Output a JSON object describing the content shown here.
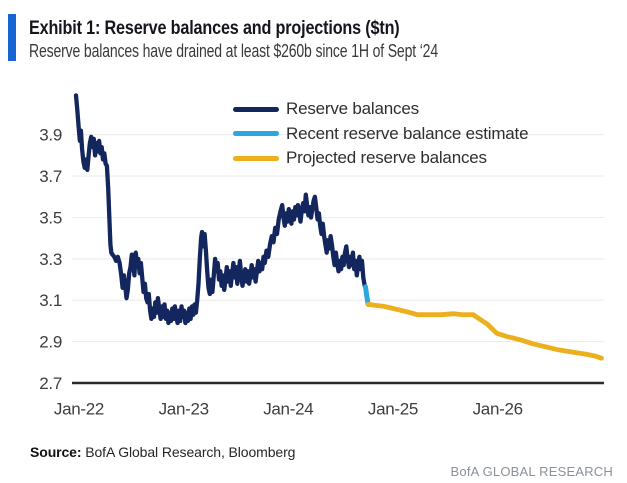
{
  "header": {
    "accent_color": "#1765d2",
    "exhibit_title": "Exhibit 1: Reserve balances and projections ($tn)",
    "subtitle": "Reserve balances have drained at least $260b since 1H of Sept ‘24"
  },
  "legend": [
    {
      "label": "Reserve balances",
      "color": "#13265e"
    },
    {
      "label": "Recent reserve balance estimate",
      "color": "#2aa7df"
    },
    {
      "label": "Projected reserve balances",
      "color": "#ecb01f"
    }
  ],
  "footer": {
    "source_label": "Source:",
    "source_text": " BofA Global Research, Bloomberg",
    "brand": "BofA GLOBAL RESEARCH"
  },
  "chart_data": {
    "type": "line",
    "title": "Reserve balances and projections ($tn)",
    "xlabel": "",
    "ylabel": "",
    "x_unit": "months since Jan-2022",
    "xlim": [
      -0.6,
      60.6
    ],
    "ylim": [
      2.7,
      4.15
    ],
    "grid": "horizontal",
    "grid_color": "#ececec",
    "axis_color": "#2c2b29",
    "tick_color": "#3e3e3d",
    "y_ticks": [
      3.9,
      3.7,
      3.5,
      3.3,
      3.1,
      2.9,
      2.7
    ],
    "x_ticks": [
      {
        "label": "Jan-22",
        "m": 0
      },
      {
        "label": "Jan-23",
        "m": 12
      },
      {
        "label": "Jan-24",
        "m": 24
      },
      {
        "label": "Jan-25",
        "m": 36
      },
      {
        "label": "Jan-26",
        "m": 48
      }
    ],
    "legend_position": "top-center",
    "series": [
      {
        "name": "Reserve balances",
        "color": "#13265e",
        "width": 4.3,
        "points": [
          [
            -0.34,
            4.09
          ],
          [
            -0.2,
            4.02
          ],
          [
            -0.05,
            3.94
          ],
          [
            0.1,
            3.87
          ],
          [
            0.22,
            3.92
          ],
          [
            0.35,
            3.83
          ],
          [
            0.5,
            3.77
          ],
          [
            0.65,
            3.74
          ],
          [
            0.8,
            3.78
          ],
          [
            0.95,
            3.73
          ],
          [
            1.1,
            3.8
          ],
          [
            1.25,
            3.86
          ],
          [
            1.4,
            3.89
          ],
          [
            1.55,
            3.84
          ],
          [
            1.7,
            3.88
          ],
          [
            1.85,
            3.8
          ],
          [
            2.0,
            3.86
          ],
          [
            2.15,
            3.82
          ],
          [
            2.3,
            3.87
          ],
          [
            2.45,
            3.81
          ],
          [
            2.6,
            3.84
          ],
          [
            2.75,
            3.78
          ],
          [
            2.9,
            3.81
          ],
          [
            3.05,
            3.76
          ],
          [
            3.2,
            3.75
          ],
          [
            3.35,
            3.64
          ],
          [
            3.5,
            3.48
          ],
          [
            3.6,
            3.37
          ],
          [
            3.7,
            3.33
          ],
          [
            3.85,
            3.32
          ],
          [
            4.05,
            3.31
          ],
          [
            4.25,
            3.29
          ],
          [
            4.45,
            3.31
          ],
          [
            4.65,
            3.28
          ],
          [
            4.85,
            3.22
          ],
          [
            5.0,
            3.16
          ],
          [
            5.15,
            3.22
          ],
          [
            5.3,
            3.17
          ],
          [
            5.45,
            3.11
          ],
          [
            5.6,
            3.15
          ],
          [
            5.75,
            3.23
          ],
          [
            5.9,
            3.26
          ],
          [
            6.05,
            3.32
          ],
          [
            6.2,
            3.29
          ],
          [
            6.35,
            3.22
          ],
          [
            6.5,
            3.33
          ],
          [
            6.65,
            3.28
          ],
          [
            6.8,
            3.3
          ],
          [
            6.95,
            3.23
          ],
          [
            7.1,
            3.28
          ],
          [
            7.25,
            3.21
          ],
          [
            7.4,
            3.14
          ],
          [
            7.55,
            3.18
          ],
          [
            7.7,
            3.11
          ],
          [
            7.85,
            3.09
          ],
          [
            8.0,
            3.13
          ],
          [
            8.15,
            3.05
          ],
          [
            8.3,
            3.01
          ],
          [
            8.45,
            3.06
          ],
          [
            8.6,
            3.02
          ],
          [
            8.75,
            3.09
          ],
          [
            8.9,
            3.04
          ],
          [
            9.05,
            3.11
          ],
          [
            9.2,
            3.06
          ],
          [
            9.35,
            3.01
          ],
          [
            9.5,
            3.07
          ],
          [
            9.65,
            3.02
          ],
          [
            9.8,
            3.08
          ],
          [
            9.95,
            3.01
          ],
          [
            10.1,
            3.05
          ],
          [
            10.25,
            2.99
          ],
          [
            10.4,
            3.04
          ],
          [
            10.55,
            3.0
          ],
          [
            10.7,
            3.06
          ],
          [
            10.85,
            3.01
          ],
          [
            11.0,
            3.07
          ],
          [
            11.15,
            3.02
          ],
          [
            11.3,
            2.99
          ],
          [
            11.45,
            3.05
          ],
          [
            11.6,
            3.0
          ],
          [
            11.75,
            3.07
          ],
          [
            11.9,
            3.02
          ],
          [
            12.05,
            3.05
          ],
          [
            12.2,
            2.99
          ],
          [
            12.35,
            3.04
          ],
          [
            12.5,
            3.0
          ],
          [
            12.65,
            3.06
          ],
          [
            12.8,
            3.01
          ],
          [
            12.95,
            3.07
          ],
          [
            13.1,
            3.03
          ],
          [
            13.25,
            3.08
          ],
          [
            13.4,
            3.04
          ],
          [
            13.55,
            3.1
          ],
          [
            13.7,
            3.18
          ],
          [
            13.85,
            3.3
          ],
          [
            14.0,
            3.4
          ],
          [
            14.1,
            3.43
          ],
          [
            14.25,
            3.36
          ],
          [
            14.4,
            3.42
          ],
          [
            14.55,
            3.34
          ],
          [
            14.7,
            3.24
          ],
          [
            14.85,
            3.16
          ],
          [
            15.0,
            3.13
          ],
          [
            15.15,
            3.2
          ],
          [
            15.3,
            3.14
          ],
          [
            15.45,
            3.22
          ],
          [
            15.6,
            3.3
          ],
          [
            15.75,
            3.24
          ],
          [
            15.9,
            3.28
          ],
          [
            16.05,
            3.2
          ],
          [
            16.2,
            3.24
          ],
          [
            16.35,
            3.17
          ],
          [
            16.5,
            3.22
          ],
          [
            16.65,
            3.15
          ],
          [
            16.8,
            3.2
          ],
          [
            16.95,
            3.26
          ],
          [
            17.1,
            3.19
          ],
          [
            17.25,
            3.24
          ],
          [
            17.4,
            3.17
          ],
          [
            17.55,
            3.23
          ],
          [
            17.7,
            3.28
          ],
          [
            17.85,
            3.21
          ],
          [
            18.0,
            3.26
          ],
          [
            18.15,
            3.18
          ],
          [
            18.3,
            3.23
          ],
          [
            18.45,
            3.29
          ],
          [
            18.6,
            3.22
          ],
          [
            18.75,
            3.17
          ],
          [
            18.9,
            3.21
          ],
          [
            19.05,
            3.25
          ],
          [
            19.2,
            3.19
          ],
          [
            19.35,
            3.24
          ],
          [
            19.5,
            3.18
          ],
          [
            19.65,
            3.22
          ],
          [
            19.8,
            3.27
          ],
          [
            19.95,
            3.21
          ],
          [
            20.1,
            3.25
          ],
          [
            20.25,
            3.19
          ],
          [
            20.4,
            3.24
          ],
          [
            20.55,
            3.29
          ],
          [
            20.7,
            3.24
          ],
          [
            20.85,
            3.28
          ],
          [
            21.0,
            3.25
          ],
          [
            21.15,
            3.31
          ],
          [
            21.3,
            3.28
          ],
          [
            21.5,
            3.34
          ],
          [
            21.7,
            3.31
          ],
          [
            21.9,
            3.37
          ],
          [
            22.1,
            3.41
          ],
          [
            22.3,
            3.38
          ],
          [
            22.5,
            3.45
          ],
          [
            22.7,
            3.42
          ],
          [
            22.9,
            3.49
          ],
          [
            23.1,
            3.53
          ],
          [
            23.3,
            3.56
          ],
          [
            23.45,
            3.5
          ],
          [
            23.6,
            3.46
          ],
          [
            23.75,
            3.52
          ],
          [
            23.9,
            3.48
          ],
          [
            24.05,
            3.54
          ],
          [
            24.2,
            3.5
          ],
          [
            24.35,
            3.47
          ],
          [
            24.5,
            3.53
          ],
          [
            24.65,
            3.49
          ],
          [
            24.8,
            3.55
          ],
          [
            24.95,
            3.51
          ],
          [
            25.1,
            3.56
          ],
          [
            25.25,
            3.52
          ],
          [
            25.4,
            3.48
          ],
          [
            25.55,
            3.54
          ],
          [
            25.7,
            3.57
          ],
          [
            25.85,
            3.53
          ],
          [
            26.0,
            3.61
          ],
          [
            26.15,
            3.56
          ],
          [
            26.3,
            3.51
          ],
          [
            26.45,
            3.55
          ],
          [
            26.6,
            3.5
          ],
          [
            26.75,
            3.54
          ],
          [
            26.9,
            3.58
          ],
          [
            27.05,
            3.6
          ],
          [
            27.2,
            3.55
          ],
          [
            27.35,
            3.49
          ],
          [
            27.5,
            3.52
          ],
          [
            27.65,
            3.46
          ],
          [
            27.8,
            3.42
          ],
          [
            27.95,
            3.47
          ],
          [
            28.1,
            3.41
          ],
          [
            28.25,
            3.37
          ],
          [
            28.4,
            3.33
          ],
          [
            28.55,
            3.39
          ],
          [
            28.7,
            3.35
          ],
          [
            28.85,
            3.41
          ],
          [
            29.0,
            3.37
          ],
          [
            29.15,
            3.31
          ],
          [
            29.3,
            3.27
          ],
          [
            29.45,
            3.33
          ],
          [
            29.6,
            3.28
          ],
          [
            29.75,
            3.24
          ],
          [
            29.9,
            3.29
          ],
          [
            30.05,
            3.25
          ],
          [
            30.2,
            3.31
          ],
          [
            30.35,
            3.27
          ],
          [
            30.5,
            3.33
          ],
          [
            30.65,
            3.36
          ],
          [
            30.8,
            3.3
          ],
          [
            30.95,
            3.26
          ],
          [
            31.1,
            3.31
          ],
          [
            31.25,
            3.27
          ],
          [
            31.4,
            3.33
          ],
          [
            31.55,
            3.25
          ],
          [
            31.7,
            3.29
          ],
          [
            31.85,
            3.22
          ],
          [
            32.0,
            3.27
          ],
          [
            32.15,
            3.31
          ],
          [
            32.3,
            3.25
          ],
          [
            32.45,
            3.29
          ],
          [
            32.6,
            3.21
          ],
          [
            32.75,
            3.17
          ],
          [
            32.85,
            3.16
          ]
        ]
      },
      {
        "name": "Recent reserve balance estimate",
        "color": "#2aa7df",
        "width": 5,
        "points": [
          [
            32.85,
            3.165
          ],
          [
            33.0,
            3.12
          ],
          [
            33.15,
            3.08
          ]
        ]
      },
      {
        "name": "Projected reserve balances",
        "color": "#ecb01f",
        "width": 4.8,
        "points": [
          [
            33.15,
            3.08
          ],
          [
            34.0,
            3.075
          ],
          [
            35.0,
            3.07
          ],
          [
            36.0,
            3.06
          ],
          [
            37.0,
            3.05
          ],
          [
            38.0,
            3.04
          ],
          [
            38.8,
            3.03
          ],
          [
            40.0,
            3.03
          ],
          [
            41.5,
            3.03
          ],
          [
            43.0,
            3.035
          ],
          [
            44.0,
            3.03
          ],
          [
            45.2,
            3.03
          ],
          [
            45.9,
            3.01
          ],
          [
            46.8,
            2.985
          ],
          [
            47.9,
            2.94
          ],
          [
            49.0,
            2.925
          ],
          [
            50.5,
            2.91
          ],
          [
            52.0,
            2.89
          ],
          [
            53.5,
            2.875
          ],
          [
            55.0,
            2.86
          ],
          [
            56.5,
            2.85
          ],
          [
            58.0,
            2.84
          ],
          [
            59.2,
            2.83
          ],
          [
            59.9,
            2.82
          ]
        ]
      }
    ]
  }
}
